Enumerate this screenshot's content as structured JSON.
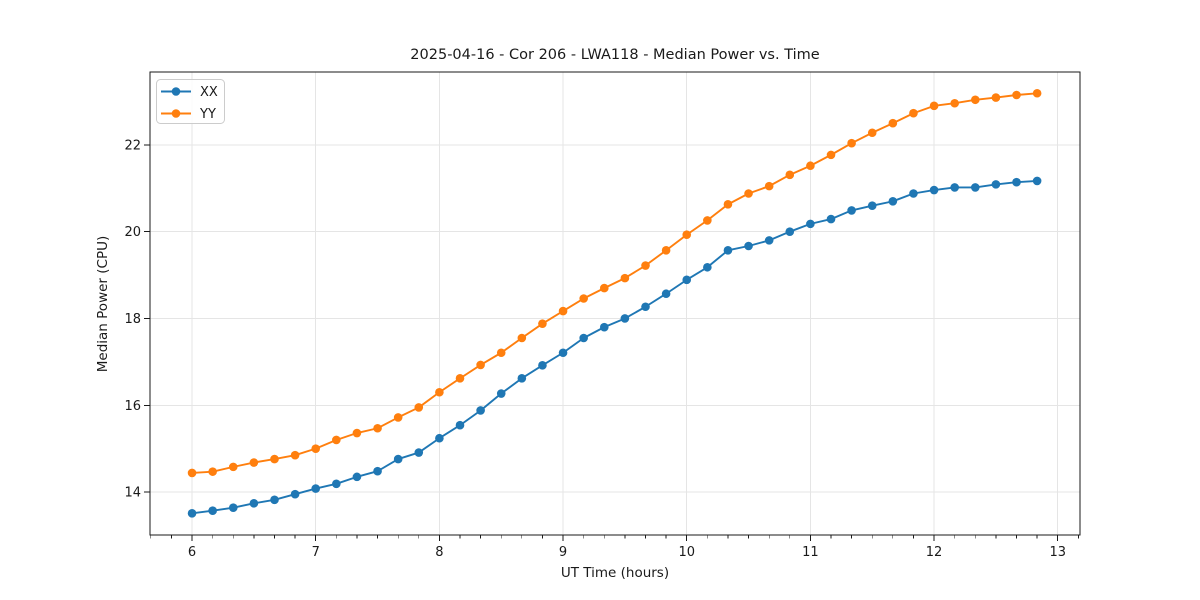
{
  "figure": {
    "background": "#ffffff",
    "spine_color": "#1a1a1a",
    "grid_color": "#e5e5e5",
    "tick_label_color": "#262626"
  },
  "chart_data": {
    "type": "line",
    "title": "2025-04-16 - Cor 206 - LWA118 - Median Power vs. Time",
    "xlabel": "UT Time (hours)",
    "ylabel": "Median Power (CPU)",
    "xlim": [
      5.66,
      13.18
    ],
    "ylim": [
      13.01,
      23.68
    ],
    "x_ticks": [
      6,
      7,
      8,
      9,
      10,
      11,
      12,
      13
    ],
    "y_ticks": [
      14,
      16,
      18,
      20,
      22
    ],
    "x_minor_interval": 0.166667,
    "grid": true,
    "legend_position": "upper-left",
    "x": [
      6.0,
      6.1667,
      6.3333,
      6.5,
      6.6667,
      6.8333,
      7.0,
      7.1667,
      7.3333,
      7.5,
      7.6667,
      7.8333,
      8.0,
      8.1667,
      8.3333,
      8.5,
      8.6667,
      8.8333,
      9.0,
      9.1667,
      9.3333,
      9.5,
      9.6667,
      9.8333,
      10.0,
      10.1667,
      10.3333,
      10.5,
      10.6667,
      10.8333,
      11.0,
      11.1667,
      11.3333,
      11.5,
      11.6667,
      11.8333,
      12.0,
      12.1667,
      12.3333,
      12.5,
      12.6667,
      12.8333
    ],
    "series": [
      {
        "name": "XX",
        "color": "#1f77b4",
        "values": [
          13.51,
          13.57,
          13.64,
          13.74,
          13.82,
          13.95,
          14.08,
          14.19,
          14.35,
          14.48,
          14.76,
          14.91,
          15.24,
          15.54,
          15.88,
          16.27,
          16.62,
          16.92,
          17.21,
          17.55,
          17.8,
          18.0,
          18.27,
          18.57,
          18.89,
          19.18,
          19.57,
          19.67,
          19.8,
          20.0,
          20.18,
          20.29,
          20.49,
          20.6,
          20.7,
          20.88,
          20.96,
          21.02,
          21.02,
          21.09,
          21.14,
          21.17
        ]
      },
      {
        "name": "YY",
        "color": "#ff7f0e",
        "values": [
          14.44,
          14.47,
          14.58,
          14.68,
          14.76,
          14.85,
          15.0,
          15.2,
          15.36,
          15.47,
          15.72,
          15.95,
          16.3,
          16.62,
          16.93,
          17.21,
          17.55,
          17.88,
          18.17,
          18.46,
          18.7,
          18.93,
          19.22,
          19.57,
          19.93,
          20.26,
          20.63,
          20.88,
          21.05,
          21.31,
          21.52,
          21.77,
          22.04,
          22.28,
          22.5,
          22.73,
          22.9,
          22.96,
          23.04,
          23.09,
          23.15,
          23.19
        ]
      }
    ]
  }
}
